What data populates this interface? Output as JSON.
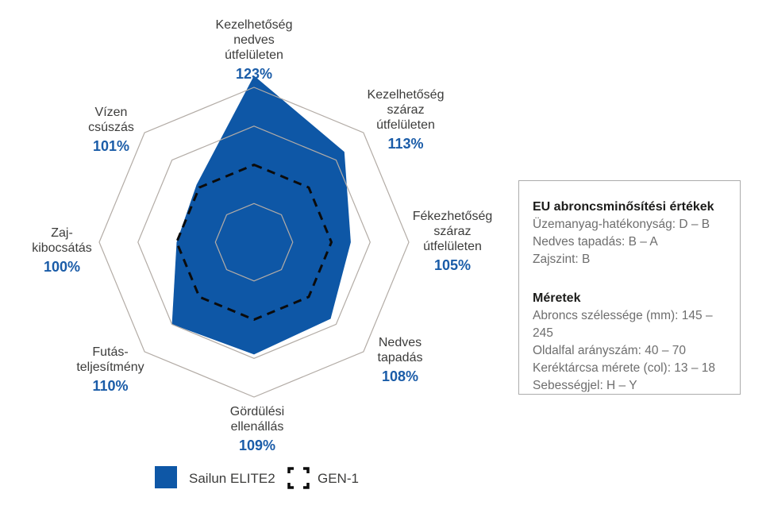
{
  "chart_data": {
    "type": "radar",
    "title": "",
    "categories": [
      "Kezelhetőség nedves útfelületen",
      "Kezelhetőség száraz útfelületen",
      "Fékezhetőség száraz útfelületen",
      "Nedves tapadás",
      "Gördülési ellenállás",
      "Futás-teljesítmény",
      "Zaj-kibocsátás",
      "Vízen csúszás"
    ],
    "series": [
      {
        "name": "Sailun ELITE2",
        "values": [
          123,
          113,
          105,
          108,
          109,
          110,
          100,
          101
        ],
        "unit": "%",
        "style": "filled",
        "color": "#0E57A6"
      },
      {
        "name": "GEN-1",
        "values": [
          100,
          100,
          100,
          100,
          100,
          100,
          100,
          100
        ],
        "unit": "%",
        "style": "dashed",
        "color": "#0B0B0B"
      }
    ],
    "value_labels": [
      "123%",
      "113%",
      "105%",
      "108%",
      "109%",
      "110%",
      "100%",
      "101%"
    ],
    "grid": {
      "rings_fraction_of_max": [
        0.25,
        0.5,
        0.75,
        1.0
      ],
      "baseline_fraction": 0.5,
      "color": "#B3ACA6",
      "spokes": false
    },
    "legend_position": "bottom-left"
  },
  "radar": {
    "axes": [
      {
        "label": "Kezelhetőség\nnedves\nútfelületen",
        "value": "123%"
      },
      {
        "label": "Kezelhetőség\nszáraz\nútfelületen",
        "value": "113%"
      },
      {
        "label": "Fékezhetőség\nszáraz\nútfelületen",
        "value": "105%"
      },
      {
        "label": "Nedves\ntapadás",
        "value": "108%"
      },
      {
        "label": "Gördülési\nellenállás",
        "value": "109%"
      },
      {
        "label": "Futás-\nteljesítmény",
        "value": "110%"
      },
      {
        "label": "Zaj-\nkibocsátás",
        "value": "100%"
      },
      {
        "label": "Vízen\ncsúszás",
        "value": "101%"
      }
    ]
  },
  "legend": {
    "items": [
      {
        "label": "Sailun ELITE2",
        "marker": "filled-blue-square"
      },
      {
        "label": "GEN-1",
        "marker": "black-dashed-square"
      }
    ]
  },
  "info_box": {
    "sections": [
      {
        "title": "EU abroncsminősítési értékek",
        "lines": [
          "Üzemanyag-hatékonyság: D – B",
          "Nedves tapadás: B – A",
          "Zajszint: B"
        ]
      },
      {
        "title": "Méretek",
        "lines": [
          "Abroncs szélessége (mm): 145 – 245",
          "Oldalfal arányszám: 40 – 70",
          "Keréktárcsa mérete (col): 13 – 18",
          "Sebességjel: H – Y"
        ]
      }
    ]
  },
  "colors": {
    "brand_blue": "#0E57A6",
    "value_text_blue": "#1A5CA8",
    "grid_gray": "#B3ACA6",
    "dashed_black": "#0B0B0B",
    "label_text": "#3C3C3B",
    "box_body_text": "#6E6E6E"
  }
}
